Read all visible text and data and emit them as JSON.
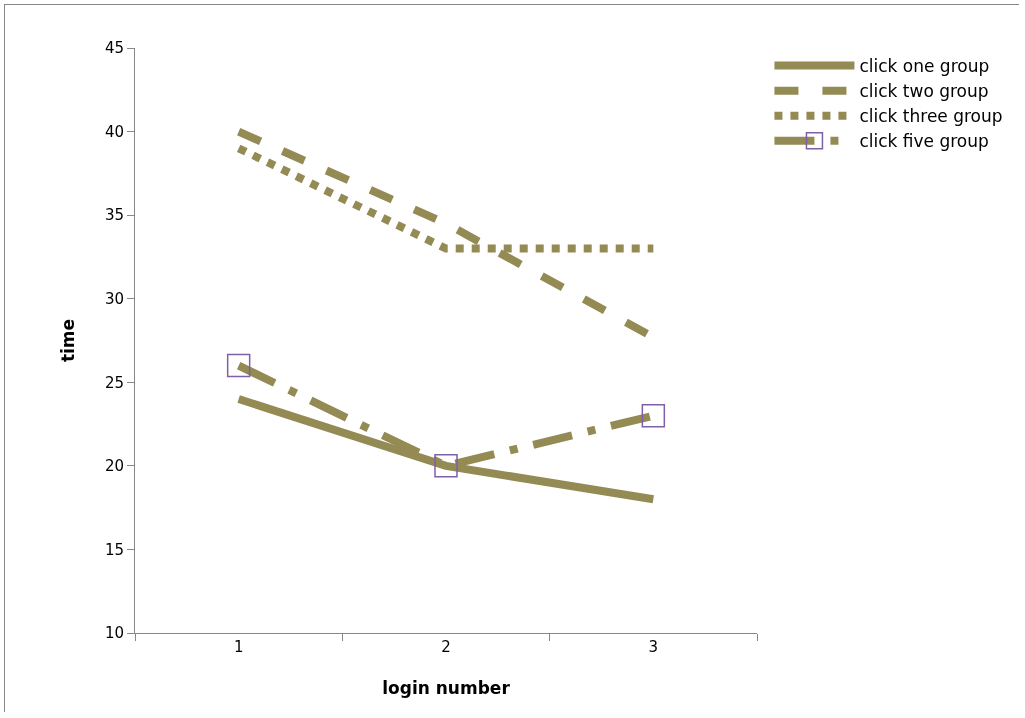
{
  "chart_data": {
    "type": "line",
    "xlabel": "login number",
    "ylabel": "time",
    "categories": [
      "1",
      "2",
      "3"
    ],
    "series": [
      {
        "name": "click one group",
        "color": "#948a54",
        "values": [
          24,
          20,
          18
        ],
        "line_style": "solid"
      },
      {
        "name": "click two group",
        "color": "#948a54",
        "values": [
          40,
          34.5,
          27.7
        ],
        "line_style": "dashed"
      },
      {
        "name": "click three group",
        "color": "#948a54",
        "values": [
          39,
          33,
          33
        ],
        "line_style": "dotted"
      },
      {
        "name": "click five group",
        "color": "#948a54",
        "values": [
          26,
          20,
          23
        ],
        "line_style": "dashed",
        "marker": "square"
      }
    ],
    "ylim": [
      10,
      45
    ],
    "yticks": [
      10,
      15,
      20,
      25,
      30,
      35,
      40,
      45
    ],
    "grid": false,
    "legend": "top right"
  }
}
